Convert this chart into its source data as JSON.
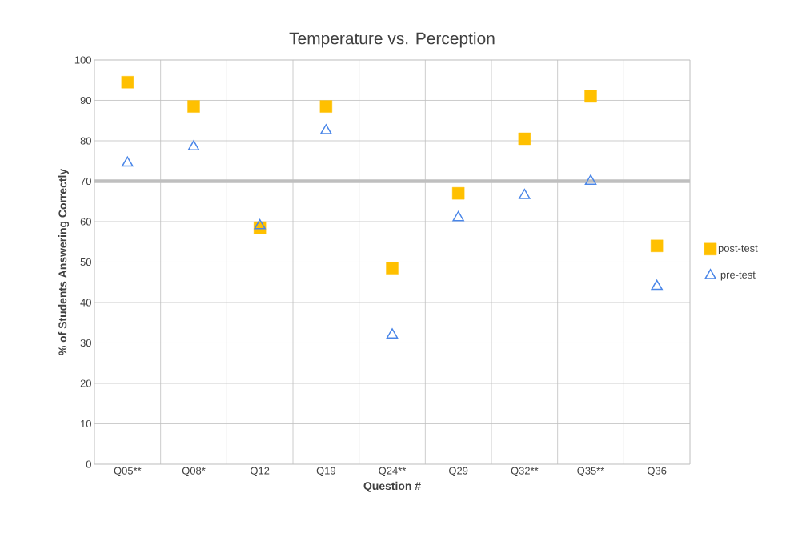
{
  "chart_data": {
    "type": "scatter",
    "title": "Temperature vs. Perception",
    "xlabel": "Question #",
    "ylabel": "% of Students Answering Correctly",
    "categories": [
      "Q05**",
      "Q08*",
      "Q12",
      "Q19",
      "Q24**",
      "Q29",
      "Q32**",
      "Q35**",
      "Q36"
    ],
    "series": [
      {
        "name": "post-test",
        "color": "#ffc000",
        "marker": "square",
        "values": [
          94.5,
          88.5,
          58.5,
          88.5,
          48.5,
          67,
          80.5,
          91,
          54
        ]
      },
      {
        "name": "pre-test",
        "color": "#4a86e8",
        "marker": "triangle",
        "values": [
          74.5,
          78.5,
          59,
          82.5,
          32,
          61,
          66.5,
          70,
          44
        ]
      }
    ],
    "ylim": [
      0,
      100
    ],
    "yticks": [
      0,
      10,
      20,
      30,
      40,
      50,
      60,
      70,
      80,
      90,
      100
    ],
    "grid": true,
    "legend": "right",
    "ref_lines": [
      {
        "axis": "y",
        "value": 70,
        "color": "#bfbfbf"
      }
    ]
  }
}
